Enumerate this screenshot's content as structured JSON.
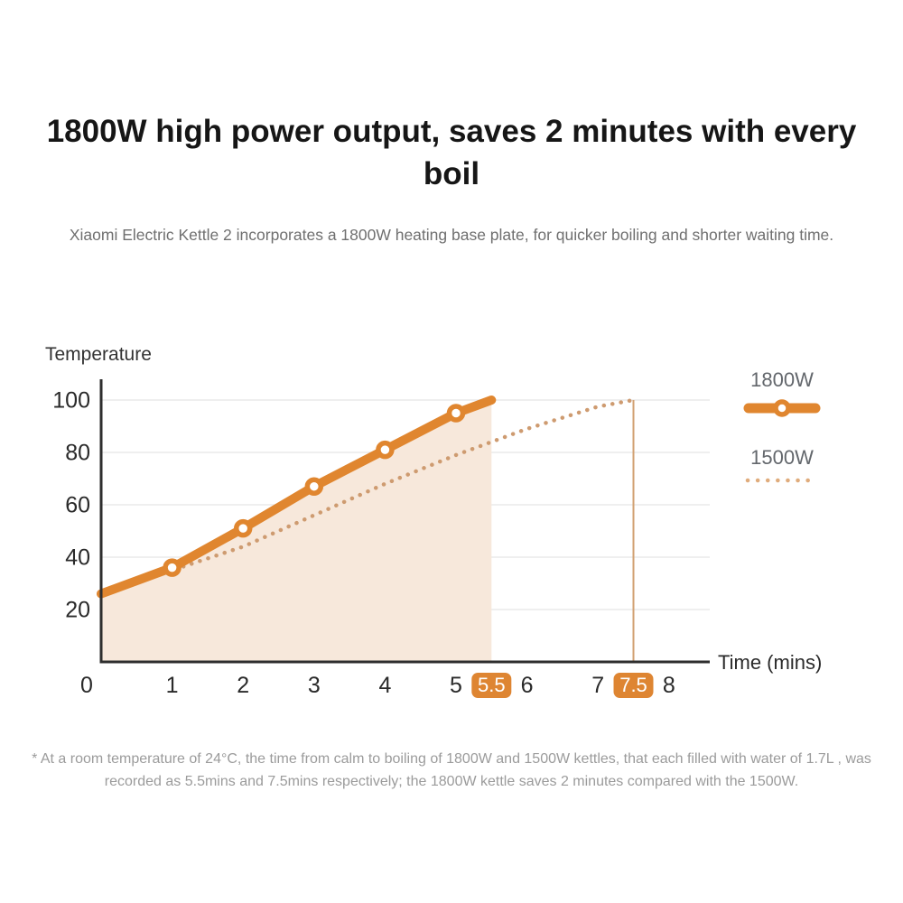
{
  "page": {
    "title": "1800W high power output, saves 2 minutes with every boil",
    "subtitle": "Xiaomi Electric Kettle 2 incorporates a 1800W heating base plate, for quicker boiling and shorter waiting time.",
    "footnote": "* At a room temperature of 24°C, the time from calm to boiling of 1800W and 1500W kettles, that each filled with water of 1.7L , was recorded as 5.5mins and 7.5mins respectively; the 1800W kettle saves 2 minutes compared with the 1500W."
  },
  "chart_data": {
    "type": "line",
    "title": "",
    "ylabel": "Temperature",
    "xlabel": "Time (mins)",
    "xlim": [
      0,
      8.5
    ],
    "ylim": [
      0,
      108
    ],
    "grid": "horizontal",
    "grid_color": "#EAEAEA",
    "axis_color": "#2E2E2E",
    "tick_color": "#2A2A2A",
    "badge_color": "#DE8532",
    "badge_text_color": "#FFFFFF",
    "vline_x": 7.5,
    "vline_color": "#D2A172",
    "legend_position": "right",
    "y_ticks": [
      20,
      40,
      60,
      80,
      100
    ],
    "x_ticks": [
      {
        "label": "0",
        "value": 0
      },
      {
        "label": "1",
        "value": 1
      },
      {
        "label": "2",
        "value": 2
      },
      {
        "label": "3",
        "value": 3
      },
      {
        "label": "4",
        "value": 4
      },
      {
        "label": "5",
        "value": 5
      },
      {
        "label": "5.5",
        "value": 5.5,
        "highlight": true
      },
      {
        "label": "6",
        "value": 6
      },
      {
        "label": "7",
        "value": 7
      },
      {
        "label": "7.5",
        "value": 7.5,
        "highlight": true
      },
      {
        "label": "8",
        "value": 8
      }
    ],
    "series": [
      {
        "name": "1800W",
        "style": "solid",
        "color": "#E0862F",
        "area_fill": "#F7E8DB",
        "boil_time_min": 5.5,
        "marker": "ring",
        "marker_x": [
          1,
          2,
          3,
          4,
          5
        ],
        "points": [
          [
            0,
            26
          ],
          [
            1,
            36
          ],
          [
            2,
            51
          ],
          [
            3,
            67
          ],
          [
            4,
            81
          ],
          [
            5,
            95
          ],
          [
            5.5,
            100
          ]
        ]
      },
      {
        "name": "1500W",
        "style": "dotted",
        "color": "#CE9B70",
        "legend_color": "#E0AC7C",
        "boil_time_min": 7.5,
        "points": [
          [
            0,
            26
          ],
          [
            1,
            35
          ],
          [
            2,
            44
          ],
          [
            3,
            56
          ],
          [
            4,
            68
          ],
          [
            5,
            79
          ],
          [
            6,
            89
          ],
          [
            7,
            97.5
          ],
          [
            7.5,
            100
          ]
        ]
      }
    ]
  }
}
